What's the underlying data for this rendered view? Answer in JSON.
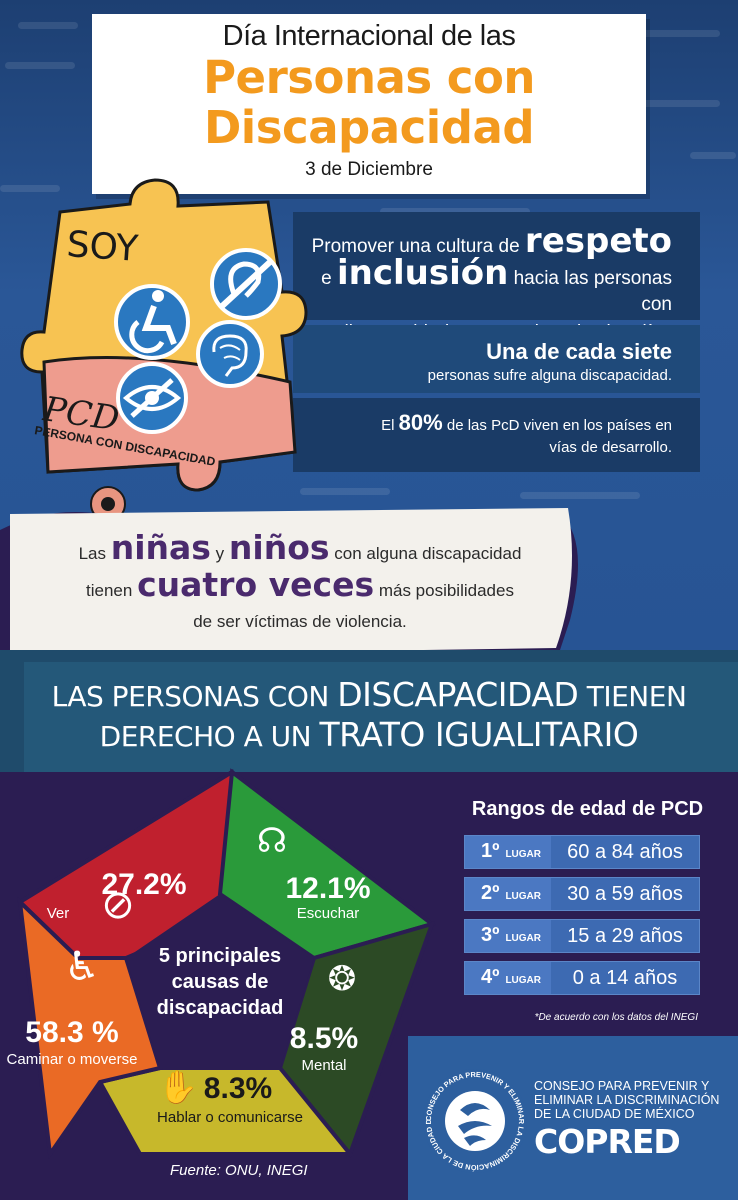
{
  "header": {
    "pre_title": "Día Internacional de las",
    "title_line1": "Personas con",
    "title_line2": "Discapacidad",
    "date": "3 de Diciembre"
  },
  "puzzle": {
    "soy": "SOY",
    "pcd": "PCD",
    "pcd_full": "PERSONA CON DISCAPACIDAD",
    "icons": [
      "hearing-impaired-icon",
      "wheelchair-icon",
      "brain-icon",
      "visual-impairment-icon"
    ]
  },
  "info": {
    "row1_part1": "Promover una cultura de",
    "row1_word1": "respeto",
    "row1_part2": "e",
    "row1_word2": "inclusión",
    "row1_part3": "hacia las personas con",
    "row1_part4": "discapacidad es tarea de todos los días",
    "row2_title": "Una de cada siete",
    "row2_text": "personas sufre alguna discapacidad.",
    "row3_part1": "El",
    "row3_pct": "80%",
    "row3_part2": "de las PcD viven en los países en",
    "row3_part3": "vías de desarrollo."
  },
  "paper": {
    "w1": "Las",
    "w2": "niñas",
    "w3": "y",
    "w4": "niños",
    "w5": "con alguna discapacidad",
    "w6": "tienen",
    "w7": "cuatro veces",
    "w8": "más posibilidades",
    "w9": "de ser víctimas de violencia."
  },
  "banner": {
    "line1_a": "LAS PERSONAS CON",
    "line1_b": "DISCAPACIDAD",
    "line1_c": "TIENEN",
    "line2_a": "DERECHO A UN",
    "line2_b": "TRATO IGUALITARIO"
  },
  "chart_data": {
    "type": "pie",
    "title": "5 principales causas de discapacidad",
    "categories": [
      "Ver",
      "Escuchar",
      "Mental",
      "Hablar o comunicarse",
      "Caminar o moverse"
    ],
    "values": [
      27.2,
      12.1,
      8.5,
      8.3,
      58.3
    ],
    "labels": [
      "27.2%",
      "12.1%",
      "8.5%",
      "8.3%",
      "58.3 %"
    ],
    "label_texts": [
      "Ver",
      "Escuchar",
      "Mental",
      "Hablar o comunicarse",
      "Caminar o moverse"
    ],
    "colors": [
      "#c0202e",
      "#2a9a3a",
      "#2c4a25",
      "#c7b82b",
      "#ea6a25"
    ],
    "center_line1": "5 principales",
    "center_line2": "causas de",
    "center_line3": "discapacidad"
  },
  "ranks": {
    "title": "Rangos de edad de PCD",
    "items": [
      {
        "pos": "1º",
        "label": "LUGAR",
        "value": "60 a 84 años"
      },
      {
        "pos": "2º",
        "label": "LUGAR",
        "value": "30 a 59 años"
      },
      {
        "pos": "3º",
        "label": "LUGAR",
        "value": "15 a 29 años"
      },
      {
        "pos": "4º",
        "label": "LUGAR",
        "value": "0 a 14 años"
      }
    ],
    "note": "*De acuerdo con los datos del INEGI"
  },
  "source": "Fuente: ONU, INEGI",
  "org": {
    "line1": "CONSEJO PARA PREVENIR Y",
    "line2": "ELIMINAR LA DISCRIMINACIÓN",
    "line3": "DE LA CIUDAD DE MÉXICO",
    "name": "COPRED",
    "ring_text": "CONSEJO PARA PREVENIR Y ELIMINAR LA DISCRIMINACIÓN DE LA CIUDAD DE MÉXICO"
  },
  "colors": {
    "orange": "#f39a1e",
    "navy": "#1a3b66",
    "purple_bg": "#2b1d52",
    "teal_banner": "#245879"
  }
}
